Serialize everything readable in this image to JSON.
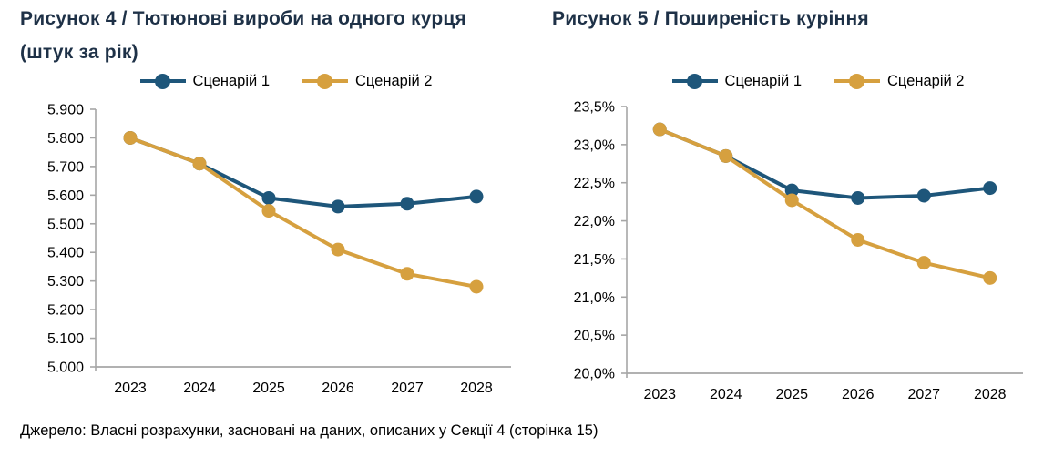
{
  "source_note": "Джерело: Власні розрахунки, засновані на даних, описаних у Секції 4 (сторінка 15)",
  "colors": {
    "scenario1": "#1E567A",
    "scenario2": "#D6A03F",
    "axis": "#A6A6A6",
    "title_text": "#1E3147",
    "tick_text": "#000000"
  },
  "chart_data": [
    {
      "type": "line",
      "title": "Рисунок 4 / Тютюнові вироби на одного курця (штук за рік)",
      "categories": [
        "2023",
        "2024",
        "2025",
        "2026",
        "2027",
        "2028"
      ],
      "series": [
        {
          "name": "Сценарій 1",
          "color_key": "scenario1",
          "values": [
            5800,
            5710,
            5590,
            5560,
            5570,
            5595
          ]
        },
        {
          "name": "Сценарій 2",
          "color_key": "scenario2",
          "values": [
            5800,
            5710,
            5545,
            5410,
            5325,
            5280
          ]
        }
      ],
      "xlabel": "",
      "ylabel": "",
      "ylim": [
        5000,
        5900
      ],
      "y_ticks": [
        {
          "value": 5000,
          "label": "5.000"
        },
        {
          "value": 5100,
          "label": "5.100"
        },
        {
          "value": 5200,
          "label": "5.200"
        },
        {
          "value": 5300,
          "label": "5.300"
        },
        {
          "value": 5400,
          "label": "5.400"
        },
        {
          "value": 5500,
          "label": "5.500"
        },
        {
          "value": 5600,
          "label": "5.600"
        },
        {
          "value": 5700,
          "label": "5.700"
        },
        {
          "value": 5800,
          "label": "5.800"
        },
        {
          "value": 5900,
          "label": "5.900"
        }
      ],
      "grid": false,
      "legend_position": "top",
      "marker": "circle"
    },
    {
      "type": "line",
      "title": "Рисунок 5 / Поширеність куріння",
      "categories": [
        "2023",
        "2024",
        "2025",
        "2026",
        "2027",
        "2028"
      ],
      "series": [
        {
          "name": "Сценарій 1",
          "color_key": "scenario1",
          "values": [
            23.2,
            22.85,
            22.4,
            22.3,
            22.33,
            22.43
          ]
        },
        {
          "name": "Сценарій 2",
          "color_key": "scenario2",
          "values": [
            23.2,
            22.85,
            22.27,
            21.75,
            21.45,
            21.25
          ]
        }
      ],
      "xlabel": "",
      "ylabel": "",
      "ylim": [
        20.0,
        23.5
      ],
      "y_ticks": [
        {
          "value": 20.0,
          "label": "20,0%"
        },
        {
          "value": 20.5,
          "label": "20,5%"
        },
        {
          "value": 21.0,
          "label": "21,0%"
        },
        {
          "value": 21.5,
          "label": "21,5%"
        },
        {
          "value": 22.0,
          "label": "22,0%"
        },
        {
          "value": 22.5,
          "label": "22,5%"
        },
        {
          "value": 23.0,
          "label": "23,0%"
        },
        {
          "value": 23.5,
          "label": "23,5%"
        }
      ],
      "grid": false,
      "legend_position": "top",
      "marker": "circle"
    }
  ]
}
